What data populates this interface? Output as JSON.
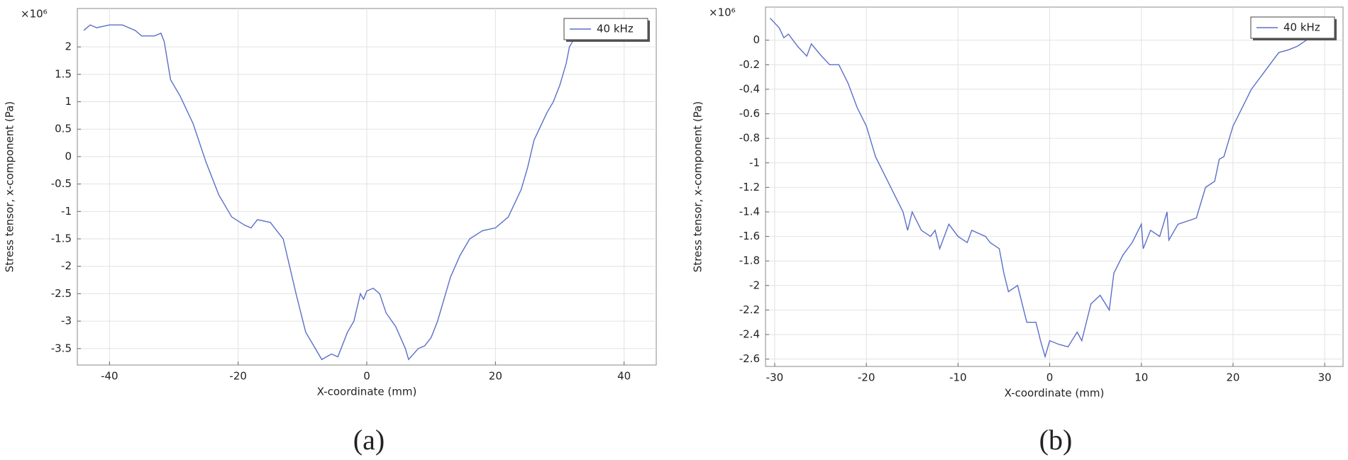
{
  "chart_data": [
    {
      "type": "line",
      "caption": "(a)",
      "xlabel": "X-coordinate (mm)",
      "ylabel": "Stress tensor, x-component (Pa)",
      "y_multiplier": "×10⁶",
      "xlim": [
        -45,
        45
      ],
      "ylim": [
        -3.8,
        2.7
      ],
      "xticks": [
        -40,
        -20,
        0,
        20,
        40
      ],
      "yticks": [
        -3.5,
        -3,
        -2.5,
        -2,
        -1.5,
        -1,
        -0.5,
        0,
        0.5,
        1,
        1.5,
        2
      ],
      "grid": true,
      "legend": "upper right",
      "series": [
        {
          "name": "40 kHz",
          "color": "#5b6fc8",
          "x": [
            -44,
            -43,
            -42,
            -40,
            -38,
            -36,
            -35,
            -33,
            -32,
            -31.5,
            -30.5,
            -29,
            -27,
            -25,
            -23,
            -21,
            -19,
            -18,
            -17,
            -15,
            -14,
            -13,
            -12,
            -11,
            -9.5,
            -8,
            -7,
            -5.5,
            -4.5,
            -3,
            -2,
            -1,
            -0.5,
            0,
            1,
            2,
            3,
            4.5,
            6,
            6.5,
            8,
            9,
            10,
            11,
            12,
            13,
            14.5,
            16,
            18,
            20,
            22,
            24,
            25,
            26,
            28,
            29,
            30,
            31,
            31.5,
            32
          ],
          "values": [
            2.3,
            2.4,
            2.35,
            2.4,
            2.4,
            2.3,
            2.2,
            2.2,
            2.25,
            2.1,
            1.4,
            1.1,
            0.6,
            -0.1,
            -0.7,
            -1.1,
            -1.25,
            -1.3,
            -1.15,
            -1.2,
            -1.35,
            -1.5,
            -2.0,
            -2.5,
            -3.2,
            -3.5,
            -3.7,
            -3.6,
            -3.65,
            -3.2,
            -3.0,
            -2.5,
            -2.6,
            -2.45,
            -2.4,
            -2.5,
            -2.85,
            -3.1,
            -3.5,
            -3.7,
            -3.5,
            -3.45,
            -3.3,
            -3.0,
            -2.6,
            -2.2,
            -1.8,
            -1.5,
            -1.35,
            -1.3,
            -1.1,
            -0.6,
            -0.2,
            0.3,
            0.8,
            1.0,
            1.3,
            1.7,
            2.0,
            2.1
          ]
        }
      ]
    },
    {
      "type": "line",
      "caption": "(b)",
      "xlabel": "X-coordinate (mm)",
      "ylabel": "Stress tensor, x-component (Pa)",
      "y_multiplier": "×10⁶",
      "xlim": [
        -31,
        32
      ],
      "ylim": [
        -2.66,
        0.27
      ],
      "xticks": [
        -30,
        -20,
        -10,
        0,
        10,
        20,
        30
      ],
      "yticks": [
        -2.6,
        -2.4,
        -2.2,
        -2,
        -1.8,
        -1.6,
        -1.4,
        -1.2,
        -1,
        -0.8,
        -0.6,
        -0.4,
        -0.2,
        0
      ],
      "grid": true,
      "legend": "upper right",
      "series": [
        {
          "name": "40 kHz",
          "color": "#5b6fc8",
          "x": [
            -30.5,
            -29.5,
            -29,
            -28.5,
            -27.5,
            -26.5,
            -26,
            -25,
            -24,
            -23,
            -22,
            -21,
            -20,
            -19,
            -18,
            -17,
            -16,
            -15.5,
            -15,
            -14,
            -13,
            -12.5,
            -12,
            -11,
            -10,
            -9,
            -8.5,
            -7,
            -6.5,
            -5.5,
            -5,
            -4.5,
            -3.5,
            -2.5,
            -1.5,
            -1,
            -0.5,
            0,
            1,
            2,
            3,
            3.5,
            4.5,
            5.5,
            6.5,
            7,
            8,
            9,
            10,
            10.2,
            11,
            12,
            12.8,
            13,
            14,
            16,
            17,
            18,
            18.5,
            19,
            20,
            21,
            22,
            23,
            24,
            25,
            26,
            27,
            28,
            29
          ],
          "values": [
            0.18,
            0.1,
            0.02,
            0.05,
            -0.05,
            -0.13,
            -0.03,
            -0.12,
            -0.2,
            -0.2,
            -0.35,
            -0.55,
            -0.7,
            -0.95,
            -1.1,
            -1.25,
            -1.4,
            -1.55,
            -1.4,
            -1.55,
            -1.6,
            -1.55,
            -1.7,
            -1.5,
            -1.6,
            -1.65,
            -1.55,
            -1.6,
            -1.65,
            -1.7,
            -1.9,
            -2.05,
            -2.0,
            -2.3,
            -2.3,
            -2.45,
            -2.58,
            -2.45,
            -2.48,
            -2.5,
            -2.38,
            -2.45,
            -2.15,
            -2.08,
            -2.2,
            -1.9,
            -1.75,
            -1.65,
            -1.5,
            -1.7,
            -1.55,
            -1.6,
            -1.4,
            -1.63,
            -1.5,
            -1.45,
            -1.2,
            -1.15,
            -0.97,
            -0.95,
            -0.7,
            -0.55,
            -0.4,
            -0.3,
            -0.2,
            -0.1,
            -0.08,
            -0.05,
            0.0,
            0.02
          ]
        }
      ]
    }
  ]
}
